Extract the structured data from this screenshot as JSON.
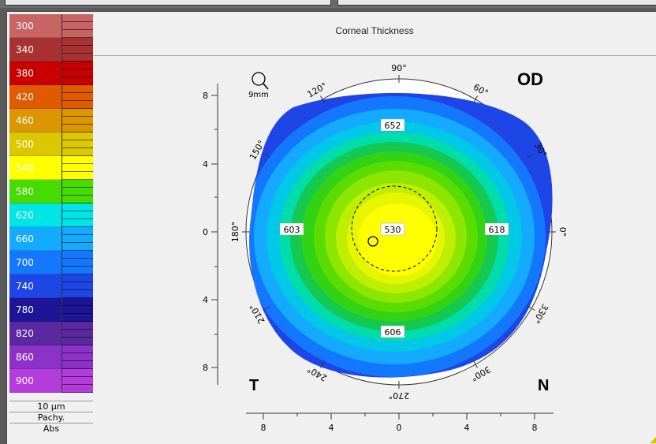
{
  "legend": {
    "items": [
      {
        "label": "300",
        "color": "#c86464"
      },
      {
        "label": "340",
        "color": "#a83232"
      },
      {
        "label": "380",
        "color": "#c80000"
      },
      {
        "label": "420",
        "color": "#e05a00"
      },
      {
        "label": "460",
        "color": "#dc9600"
      },
      {
        "label": "500",
        "color": "#dcc800"
      },
      {
        "label": "540",
        "color": "#ffff00"
      },
      {
        "label": "580",
        "color": "#46dc00"
      },
      {
        "label": "620",
        "color": "#00e6e6"
      },
      {
        "label": "660",
        "color": "#14aaff"
      },
      {
        "label": "700",
        "color": "#1478ff"
      },
      {
        "label": "740",
        "color": "#1e46e6"
      },
      {
        "label": "780",
        "color": "#1e1496"
      },
      {
        "label": "820",
        "color": "#5a28a0"
      },
      {
        "label": "860",
        "color": "#8c32c8"
      },
      {
        "label": "900",
        "color": "#b43cdc"
      }
    ],
    "step": "10 µm",
    "mode": "Pachy.",
    "scale": "Abs"
  },
  "map": {
    "title": "Corneal Thickness",
    "eye": "OD",
    "temporal": "T",
    "nasal": "N",
    "zoom": "9mm",
    "values": {
      "top": "652",
      "left": "603",
      "center": "530",
      "right": "618",
      "bottom": "606"
    },
    "angles": [
      "0°",
      "30°",
      "60°",
      "90°",
      "120°",
      "150°",
      "180°",
      "210°",
      "240°",
      "270°",
      "300°",
      "330°"
    ],
    "y_ticks": [
      "8",
      "4",
      "0",
      "4",
      "8"
    ],
    "x_ticks": [
      "8",
      "4",
      "0",
      "4",
      "8"
    ]
  }
}
